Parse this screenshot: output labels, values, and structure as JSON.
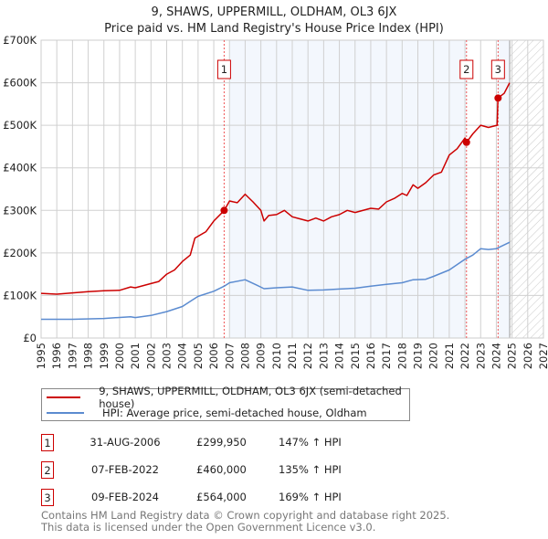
{
  "chart_data": {
    "type": "line",
    "title": "9, SHAWS, UPPERMILL, OLDHAM, OL3 6JX",
    "subtitle": "Price paid vs. HM Land Registry's House Price Index (HPI)",
    "xlabel": "",
    "ylabel": "",
    "xlim": [
      1995,
      2027
    ],
    "ylim": [
      0,
      700000
    ],
    "x_ticks": [
      "1995",
      "1996",
      "1997",
      "1998",
      "1999",
      "2000",
      "2001",
      "2002",
      "2003",
      "2004",
      "2005",
      "2006",
      "2007",
      "2008",
      "2009",
      "2010",
      "2011",
      "2012",
      "2013",
      "2014",
      "2015",
      "2016",
      "2017",
      "2018",
      "2019",
      "2020",
      "2021",
      "2022",
      "2023",
      "2024",
      "2025",
      "2026",
      "2027"
    ],
    "y_ticks": [
      {
        "value": 0,
        "label": "£0"
      },
      {
        "value": 100000,
        "label": "£100K"
      },
      {
        "value": 200000,
        "label": "£200K"
      },
      {
        "value": 300000,
        "label": "£300K"
      },
      {
        "value": 400000,
        "label": "£400K"
      },
      {
        "value": 500000,
        "label": "£500K"
      },
      {
        "value": 600000,
        "label": "£600K"
      },
      {
        "value": 700000,
        "label": "£700K"
      }
    ],
    "grid": true,
    "shaded_ranges": [
      [
        2007.0,
        2022.1
      ],
      [
        2024.1,
        2024.85
      ]
    ],
    "hatched_range": [
      2024.85,
      2027
    ],
    "series": [
      {
        "name": "9, SHAWS, UPPERMILL, OLDHAM, OL3 6JX (semi-detached house)",
        "color": "#cc0000",
        "x": [
          1995,
          1996,
          1997,
          1998,
          1999,
          2000,
          2000.7,
          2001,
          2002,
          2002.5,
          2003,
          2003.5,
          2004,
          2004.5,
          2004.8,
          2005.5,
          2006,
          2006.67,
          2007,
          2007.5,
          2008,
          2008.5,
          2009,
          2009.2,
          2009.5,
          2010,
          2010.5,
          2011,
          2011.5,
          2012,
          2012.5,
          2013,
          2013.5,
          2014,
          2014.5,
          2015,
          2016,
          2016.5,
          2017,
          2017.5,
          2018,
          2018.3,
          2018.7,
          2019,
          2019.5,
          2020,
          2020.5,
          2021,
          2021.5,
          2022,
          2022.1,
          2022.5,
          2023,
          2023.5,
          2024.05,
          2024.1,
          2024.5,
          2024.85
        ],
        "y": [
          105000,
          103000,
          106000,
          109000,
          111000,
          112000,
          120000,
          118000,
          128000,
          133000,
          150000,
          160000,
          180000,
          195000,
          235000,
          250000,
          275000,
          300000,
          322000,
          318000,
          338000,
          320000,
          300000,
          275000,
          288000,
          290000,
          300000,
          285000,
          280000,
          275000,
          282000,
          275000,
          285000,
          290000,
          300000,
          295000,
          305000,
          303000,
          320000,
          328000,
          340000,
          335000,
          360000,
          352000,
          365000,
          383000,
          390000,
          430000,
          445000,
          470000,
          460000,
          480000,
          500000,
          495000,
          500000,
          564000,
          575000,
          600000
        ]
      },
      {
        "name": "HPI: Average price, semi-detached house, Oldham",
        "color": "#5b8bd0",
        "x": [
          1995,
          1997,
          1999,
          2000.7,
          2001,
          2002,
          2003,
          2004,
          2004.5,
          2005,
          2006,
          2006.67,
          2007,
          2008,
          2008.7,
          2009.2,
          2010,
          2011,
          2012,
          2013,
          2014,
          2015,
          2016,
          2017,
          2018,
          2018.7,
          2019.5,
          2020,
          2021,
          2022,
          2022.5,
          2023,
          2023.5,
          2024,
          2024.85
        ],
        "y": [
          44000,
          44000,
          46000,
          50000,
          48000,
          53000,
          62000,
          74000,
          86000,
          98000,
          110000,
          122000,
          130000,
          137000,
          125000,
          116000,
          118000,
          120000,
          112000,
          113000,
          115000,
          117000,
          122000,
          126000,
          130000,
          137000,
          138000,
          145000,
          160000,
          185000,
          195000,
          210000,
          208000,
          210000,
          225000
        ]
      }
    ],
    "sales": [
      {
        "id": "1",
        "x": 2006.66,
        "price": 299950
      },
      {
        "id": "2",
        "x": 2022.1,
        "price": 460000
      },
      {
        "id": "3",
        "x": 2024.11,
        "price": 564000
      }
    ]
  },
  "legend": {
    "property": "9, SHAWS, UPPERMILL, OLDHAM, OL3 6JX (semi-detached house)",
    "hpi": "HPI: Average price, semi-detached house, Oldham"
  },
  "transactions": [
    {
      "num": "1",
      "date": "31-AUG-2006",
      "price": "£299,950",
      "hpi": "147% ↑ HPI"
    },
    {
      "num": "2",
      "date": "07-FEB-2022",
      "price": "£460,000",
      "hpi": "135% ↑ HPI"
    },
    {
      "num": "3",
      "date": "09-FEB-2024",
      "price": "£564,000",
      "hpi": "169% ↑ HPI"
    }
  ],
  "footer": {
    "line1": "Contains HM Land Registry data © Crown copyright and database right 2025.",
    "line2": "This data is licensed under the Open Government Licence v3.0."
  }
}
